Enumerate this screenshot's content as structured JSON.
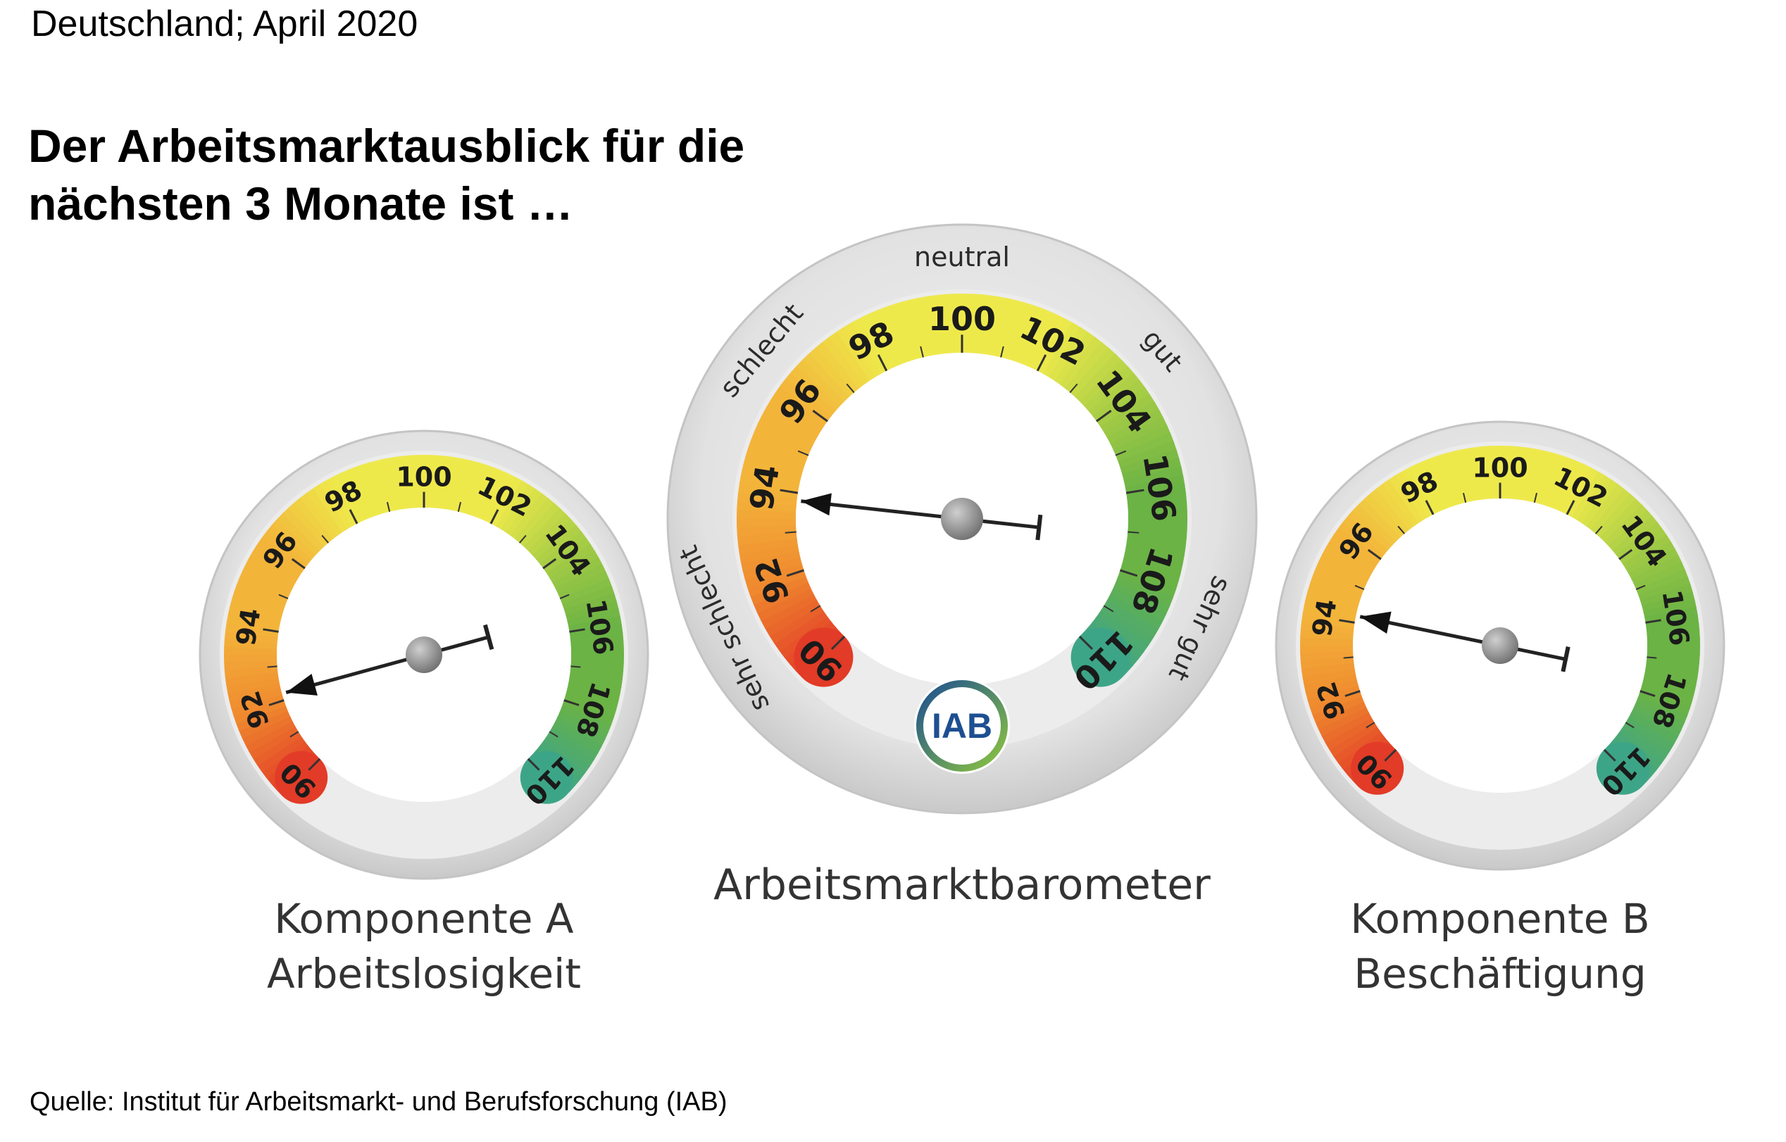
{
  "region_date": "Deutschland; April 2020",
  "headline_line1": "Der Arbeitsmarktausblick für die",
  "headline_line2": "nächsten 3 Monate ist …",
  "source": "Quelle: Institut für Arbeitsmarkt- und Berufsforschung (IAB)",
  "logo_text": "IAB",
  "colors": {
    "red": "#e23b27",
    "orange": "#ef8a2e",
    "amber": "#f3b43a",
    "yellow": "#eee94b",
    "lightgreen": "#a7cd45",
    "green": "#6bb345",
    "teal": "#3da587",
    "bezel": "#e4e4e4",
    "logo_blue": "#1d4f91",
    "logo_green": "#8dc63f"
  },
  "chart_data": [
    {
      "type": "gauge",
      "name": "Komponente A",
      "label_line1": "Komponente A",
      "label_line2": "Arbeitslosigkeit",
      "scale": [
        90,
        110
      ],
      "tick_labels": [
        "90",
        "92",
        "94",
        "96",
        "98",
        "100",
        "102",
        "104",
        "106",
        "108",
        "110"
      ],
      "value": 92.2
    },
    {
      "type": "gauge",
      "name": "Arbeitsmarktbarometer",
      "label_line1": "Arbeitsmarktbarometer",
      "label_line2": "",
      "scale": [
        90,
        110
      ],
      "tick_labels": [
        "90",
        "92",
        "94",
        "96",
        "98",
        "100",
        "102",
        "104",
        "106",
        "108",
        "110"
      ],
      "mood_labels": [
        "sehr schlecht",
        "schlecht",
        "neutral",
        "gut",
        "sehr gut"
      ],
      "value": 93.8
    },
    {
      "type": "gauge",
      "name": "Komponente B",
      "label_line1": "Komponente B",
      "label_line2": "Beschäftigung",
      "scale": [
        90,
        110
      ],
      "tick_labels": [
        "90",
        "92",
        "94",
        "96",
        "98",
        "100",
        "102",
        "104",
        "106",
        "108",
        "110"
      ],
      "value": 94.2
    }
  ]
}
